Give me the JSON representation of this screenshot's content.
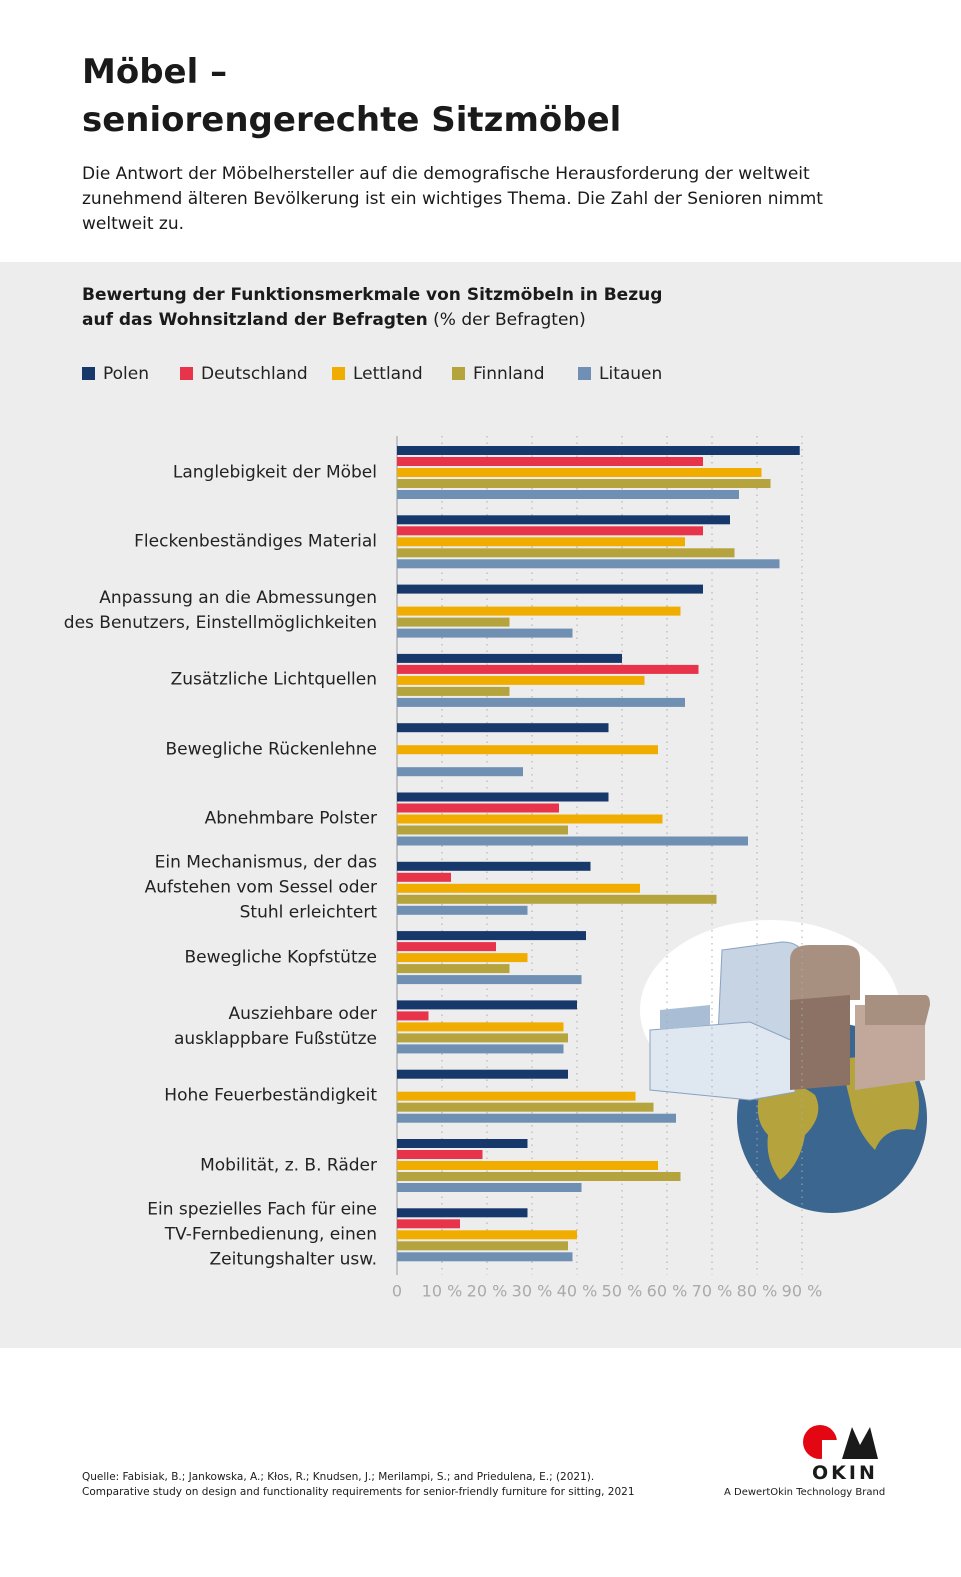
{
  "header": {
    "title": "Möbel –\nseniorengerechte Sitzmöbel",
    "intro": "Die Antwort der Möbelhersteller auf die demografische Herausforderung der weltweit zunehmend älteren Bevölkerung ist ein wichtiges Thema. Die Zahl der Senioren nimmt weltweit zu."
  },
  "chart_data": {
    "type": "barh",
    "title": "Bewertung der Funktionsmerkmale von Sitzmöbeln in Bezug\nauf das Wohnsitzland der Befragten",
    "unit_note": "(% der Befragten)",
    "categories": [
      "Langlebigkeit der Möbel",
      "Fleckenbeständiges Material",
      "Anpassung an die Abmessungen\ndes Benutzers, Einstellmöglichkeiten",
      "Zusätzliche Lichtquellen",
      "Bewegliche Rückenlehne",
      "Abnehmbare Polster",
      "Ein Mechanismus, der das\nAufstehen vom Sessel oder\nStuhl erleichtert",
      "Bewegliche Kopfstütze",
      "Ausziehbare oder\nausklappbare Fußstütze",
      "Hohe Feuerbeständigkeit",
      "Mobilität, z. B. Räder",
      "Ein spezielles Fach für eine\nTV-Fernbedienung, einen\nZeitungshalter usw."
    ],
    "series": [
      {
        "name": "Polen",
        "color": "#17386b",
        "values": [
          89.5,
          74,
          68,
          50,
          47,
          47,
          43,
          42,
          40,
          38,
          29,
          29
        ]
      },
      {
        "name": "Deutschland",
        "color": "#e8344a",
        "values": [
          68,
          68,
          null,
          67,
          null,
          36,
          12,
          22,
          7,
          null,
          19,
          14
        ]
      },
      {
        "name": "Lettland",
        "color": "#f0ad00",
        "values": [
          81,
          64,
          63,
          55,
          58,
          59,
          54,
          29,
          37,
          53,
          58,
          40
        ]
      },
      {
        "name": "Finnland",
        "color": "#b5a33e",
        "values": [
          83,
          75,
          25,
          25,
          null,
          38,
          71,
          25,
          38,
          57,
          63,
          38
        ]
      },
      {
        "name": "Litauen",
        "color": "#6f8fb3",
        "values": [
          76,
          85,
          39,
          64,
          28,
          78,
          29,
          41,
          37,
          62,
          41,
          39
        ]
      }
    ],
    "xlim": [
      0,
      90
    ],
    "xticks": [
      0,
      {
        "value": 10,
        "label": "10 %"
      },
      {
        "value": 20,
        "label": "20 %"
      },
      {
        "value": 30,
        "label": "30 %"
      },
      {
        "value": 40,
        "label": "40 %"
      },
      {
        "value": 50,
        "label": "50 %"
      },
      {
        "value": 60,
        "label": "60 %"
      },
      {
        "value": 70,
        "label": "70 %"
      },
      {
        "value": 80,
        "label": "80 %"
      },
      {
        "value": 90,
        "label": "90 %"
      }
    ],
    "grid": true
  },
  "footer": {
    "source": "Quelle: Fabisiak, B.; Jankowska, A.; Kłos, R.; Knudsen, J.; Merilampi, S.; and Priedulena, E.; (2021).\nComparative study on design and functionality requirements for senior-friendly furniture for sitting, 2021",
    "logo": "OKIN",
    "brand": "A DewertOkin Technology Brand"
  }
}
